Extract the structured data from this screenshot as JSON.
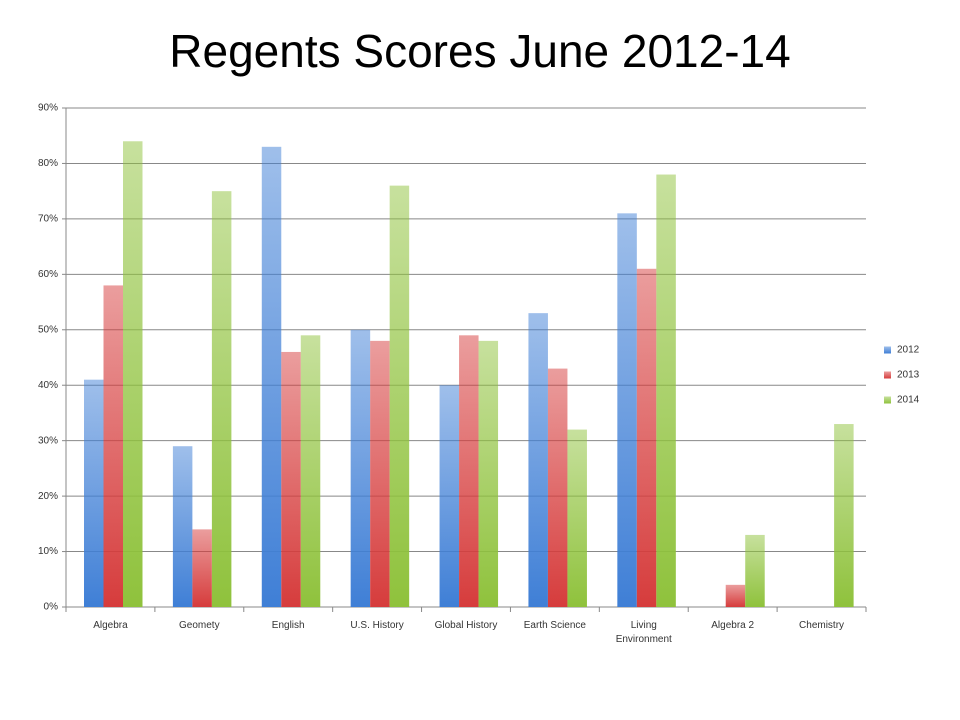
{
  "chart_data": {
    "type": "bar",
    "title": "Regents Scores June 2012-14",
    "categories": [
      "Algebra",
      "Geomety",
      "English",
      "U.S. History",
      "Global History",
      "Earth Science",
      "Living Environment",
      "Algebra 2",
      "Chemistry"
    ],
    "series": [
      {
        "name": "2012",
        "color": "#3f7fd6",
        "values": [
          41,
          29,
          83,
          50,
          40,
          53,
          71,
          null,
          null
        ]
      },
      {
        "name": "2013",
        "color": "#d63c3c",
        "values": [
          58,
          14,
          46,
          48,
          49,
          43,
          61,
          4,
          null
        ]
      },
      {
        "name": "2014",
        "color": "#8fc23c",
        "values": [
          84,
          75,
          49,
          76,
          48,
          32,
          78,
          13,
          33
        ]
      }
    ],
    "ylim": [
      0,
      90
    ],
    "yticks": [
      {
        "value": 0,
        "label": "0%"
      },
      {
        "value": 10,
        "label": "10%"
      },
      {
        "value": 20,
        "label": "20%"
      },
      {
        "value": 30,
        "label": "30%"
      },
      {
        "value": 40,
        "label": "40%"
      },
      {
        "value": 50,
        "label": "50%"
      },
      {
        "value": 60,
        "label": "60%"
      },
      {
        "value": 70,
        "label": "70%"
      },
      {
        "value": 80,
        "label": "80%"
      },
      {
        "value": 90,
        "label": "90%"
      }
    ],
    "grid": true,
    "legend": "right"
  }
}
